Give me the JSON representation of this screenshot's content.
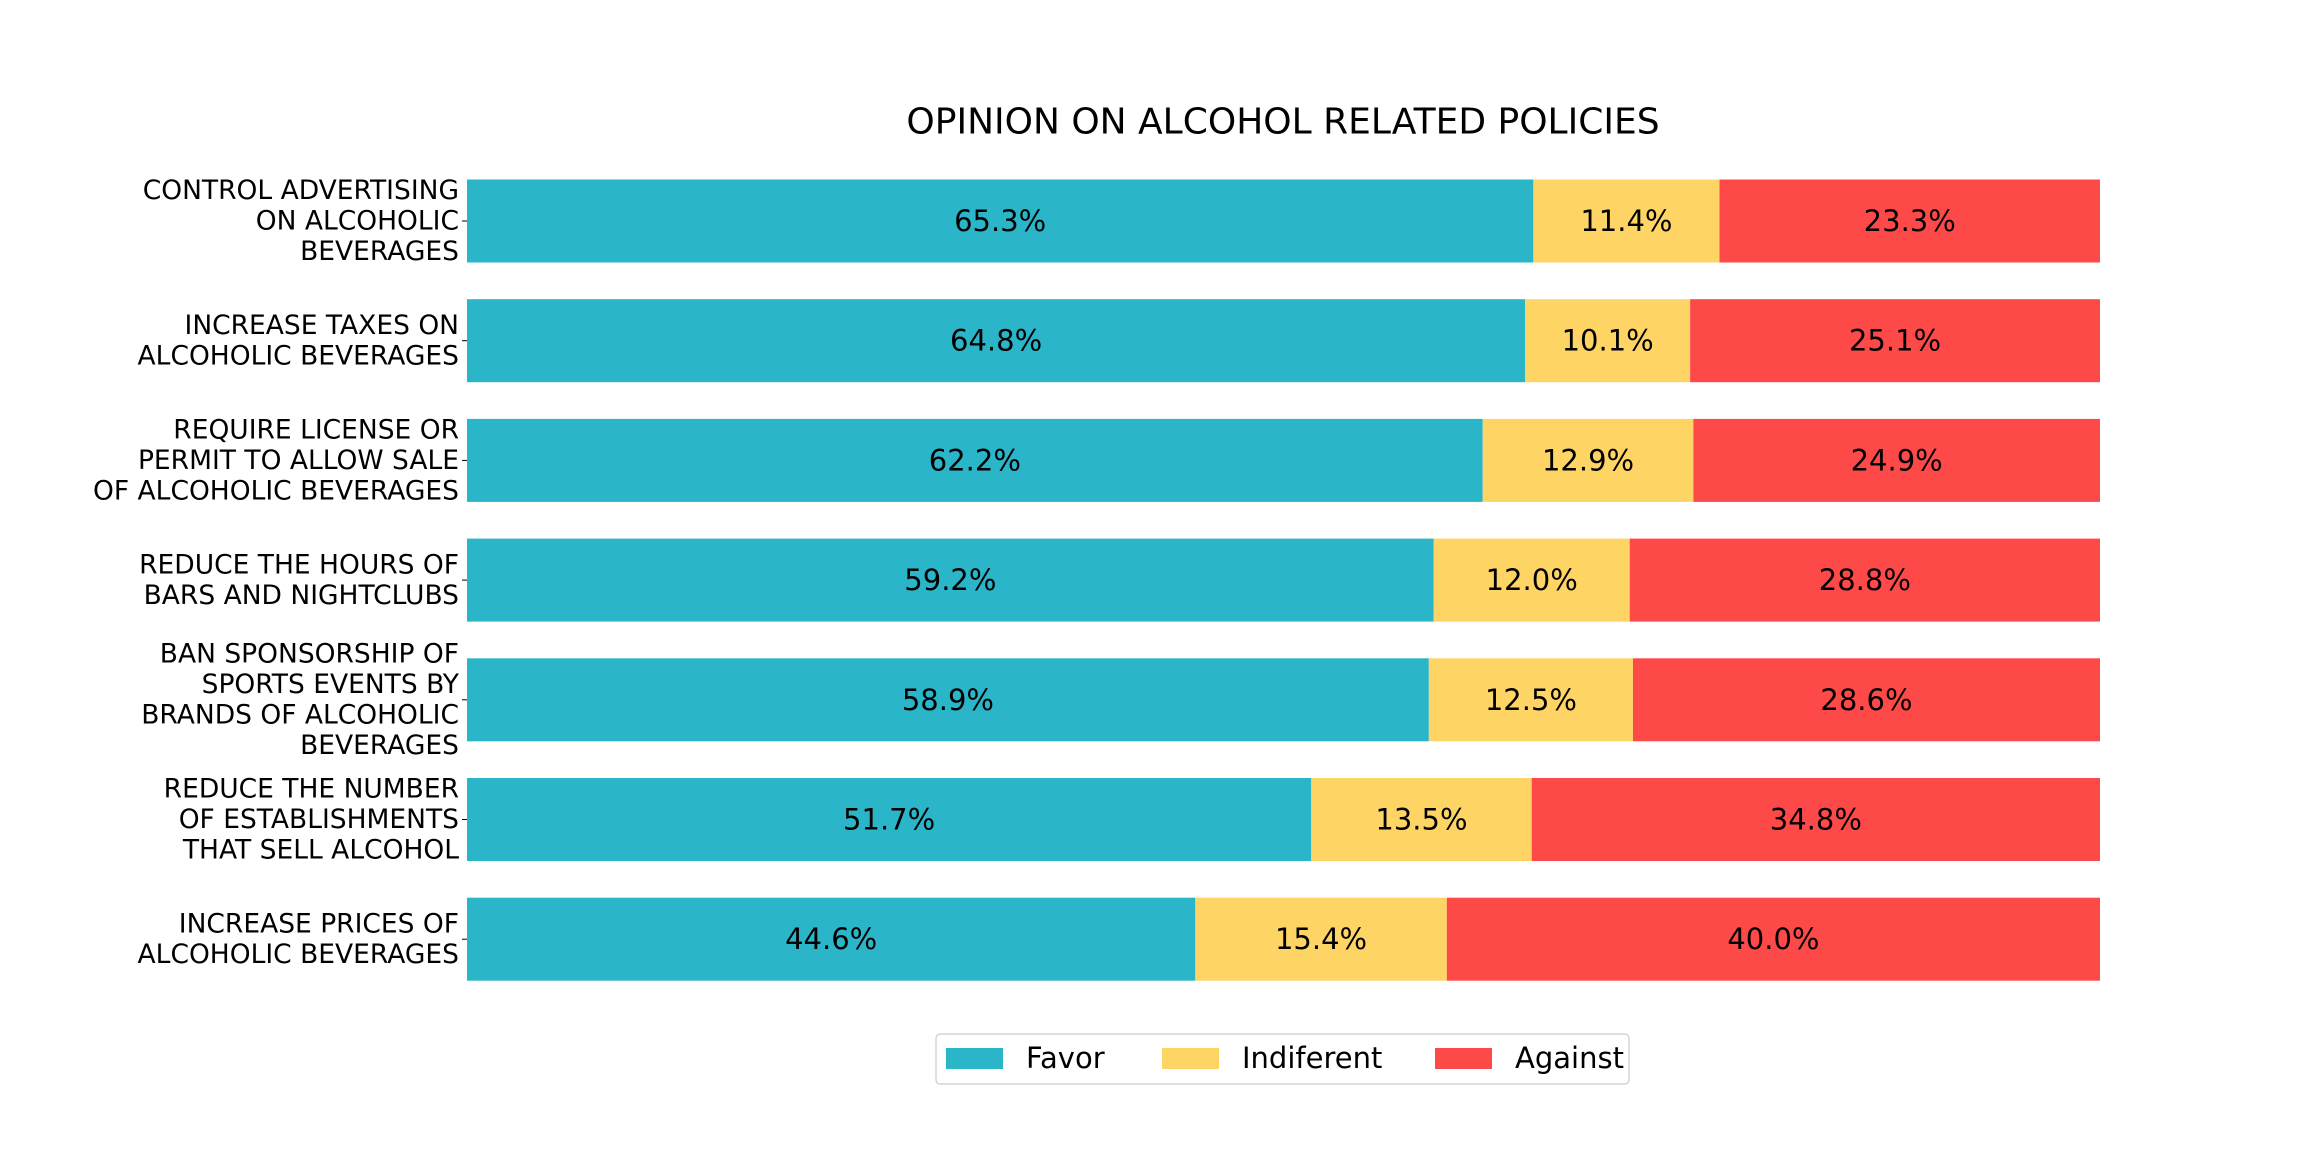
{
  "chart_data": {
    "type": "bar",
    "orientation": "horizontal",
    "stacked": true,
    "title": "OPINION ON ALCOHOL RELATED POLICIES",
    "categories": [
      [
        "CONTROL ADVERTISING",
        "ON ALCOHOLIC",
        "BEVERAGES"
      ],
      [
        "INCREASE TAXES ON",
        "ALCOHOLIC BEVERAGES"
      ],
      [
        "REQUIRE LICENSE OR",
        "PERMIT TO ALLOW SALE",
        "OF ALCOHOLIC BEVERAGES"
      ],
      [
        "REDUCE THE HOURS OF",
        "BARS AND NIGHTCLUBS"
      ],
      [
        "BAN SPONSORSHIP OF",
        "SPORTS EVENTS BY",
        "BRANDS OF ALCOHOLIC",
        "BEVERAGES"
      ],
      [
        "REDUCE THE NUMBER",
        "OF ESTABLISHMENTS",
        "THAT SELL ALCOHOL"
      ],
      [
        "INCREASE PRICES OF",
        "ALCOHOLIC BEVERAGES"
      ]
    ],
    "series": [
      {
        "name": "Favor",
        "color": "#2bb5c9",
        "values": [
          65.3,
          64.8,
          62.2,
          59.2,
          58.9,
          51.7,
          44.6
        ]
      },
      {
        "name": "Indiferent",
        "color": "#fed565",
        "values": [
          11.4,
          10.1,
          12.9,
          12.0,
          12.5,
          13.5,
          15.4
        ]
      },
      {
        "name": "Against",
        "color": "#fe4949",
        "values": [
          23.3,
          25.1,
          24.9,
          28.8,
          28.6,
          34.8,
          40.0
        ]
      }
    ],
    "value_format": "{v}%",
    "xlim": [
      0,
      100
    ],
    "xlabel": "",
    "ylabel": "",
    "grid": false,
    "axes_visible": false,
    "legend_position": "bottom-center"
  }
}
